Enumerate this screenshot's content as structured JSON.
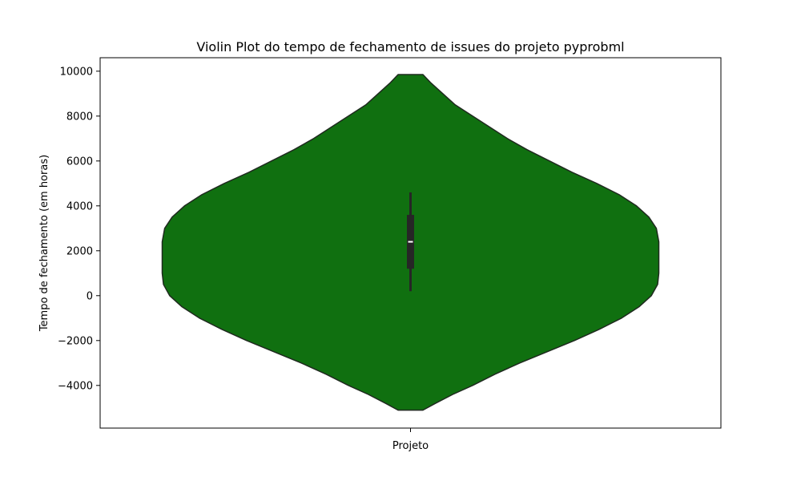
{
  "chart_data": {
    "type": "violin",
    "title": "Violin Plot do tempo de fechamento de issues do projeto pyprobml",
    "xlabel": "",
    "ylabel": "Tempo de fechamento (em horas)",
    "categories": [
      "Projeto"
    ],
    "ylim": [
      -5900,
      10600
    ],
    "yticks": [
      -4000,
      -2000,
      0,
      2000,
      4000,
      6000,
      8000,
      10000
    ],
    "ytick_labels": [
      "−4000",
      "−2000",
      "0",
      "2000",
      "4000",
      "6000",
      "8000",
      "10000"
    ],
    "grid": false,
    "fill_color": "#107010",
    "violin": {
      "min": -5100,
      "max": 9850,
      "density_profile": [
        [
          -5100,
          0.05
        ],
        [
          -4800,
          0.1
        ],
        [
          -4400,
          0.17
        ],
        [
          -4000,
          0.25
        ],
        [
          -3500,
          0.34
        ],
        [
          -3000,
          0.44
        ],
        [
          -2500,
          0.55
        ],
        [
          -2000,
          0.66
        ],
        [
          -1500,
          0.76
        ],
        [
          -1000,
          0.85
        ],
        [
          -500,
          0.92
        ],
        [
          0,
          0.97
        ],
        [
          500,
          0.995
        ],
        [
          1000,
          1.0
        ],
        [
          1500,
          1.0
        ],
        [
          2000,
          1.0
        ],
        [
          2400,
          1.0
        ],
        [
          3000,
          0.99
        ],
        [
          3500,
          0.96
        ],
        [
          4000,
          0.91
        ],
        [
          4500,
          0.84
        ],
        [
          5000,
          0.75
        ],
        [
          5500,
          0.65
        ],
        [
          6000,
          0.56
        ],
        [
          6500,
          0.47
        ],
        [
          7000,
          0.39
        ],
        [
          7500,
          0.32
        ],
        [
          8000,
          0.25
        ],
        [
          8500,
          0.18
        ],
        [
          9000,
          0.13
        ],
        [
          9500,
          0.08
        ],
        [
          9850,
          0.05
        ]
      ]
    },
    "box": {
      "whisker_low": 200,
      "q1": 1200,
      "median": 2400,
      "q3": 3600,
      "whisker_high": 4600
    }
  }
}
